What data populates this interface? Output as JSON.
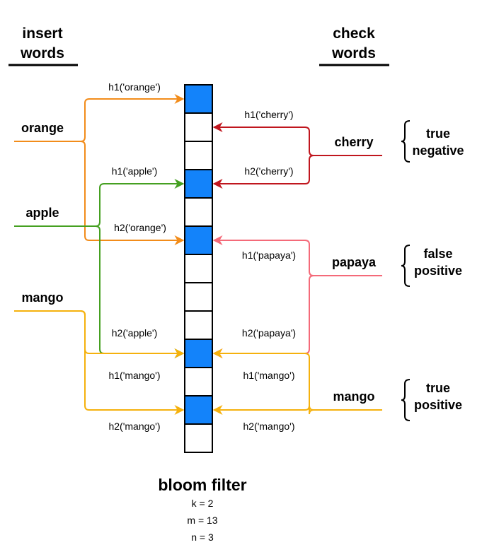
{
  "headers": {
    "insert": [
      "insert",
      "words"
    ],
    "check": [
      "check",
      "words"
    ]
  },
  "insert_words": [
    {
      "word": "orange",
      "color": "#f28c1a",
      "h1": {
        "label": "h1('orange')",
        "cell": 0
      },
      "h2": {
        "label": "h2('orange')",
        "cell": 5
      }
    },
    {
      "word": "apple",
      "color": "#45a021",
      "h1": {
        "label": "h1('apple')",
        "cell": 3
      },
      "h2": {
        "label": "h2('apple')",
        "cell": 9
      }
    },
    {
      "word": "mango",
      "color": "#f5b10d",
      "h1": {
        "label": "h1('mango')",
        "cell": 9
      },
      "h2": {
        "label": "h2('mango')",
        "cell": 11
      }
    }
  ],
  "check_words": [
    {
      "word": "cherry",
      "color": "#c0161e",
      "h1": {
        "label": "h1('cherry')",
        "cell": 1
      },
      "h2": {
        "label": "h2('cherry')",
        "cell": 3
      },
      "result": [
        "true",
        "negative"
      ]
    },
    {
      "word": "papaya",
      "color": "#f46a79",
      "h1": {
        "label": "h1('papaya')",
        "cell": 5
      },
      "h2": {
        "label": "h2('papaya')",
        "cell": 9
      },
      "result": [
        "false",
        "positive"
      ]
    },
    {
      "word": "mango",
      "color": "#f5b10d",
      "h1": {
        "label": "h1('mango')",
        "cell": 9
      },
      "h2": {
        "label": "h2('mango')",
        "cell": 11
      },
      "result": [
        "true",
        "positive"
      ]
    }
  ],
  "bloom_filter": {
    "title": "bloom filter",
    "cells": [
      1,
      0,
      0,
      1,
      0,
      1,
      0,
      0,
      0,
      1,
      0,
      1,
      0
    ],
    "set_color": "#1383fa",
    "params": [
      "k = 2",
      "m = 13",
      "n = 3"
    ]
  }
}
